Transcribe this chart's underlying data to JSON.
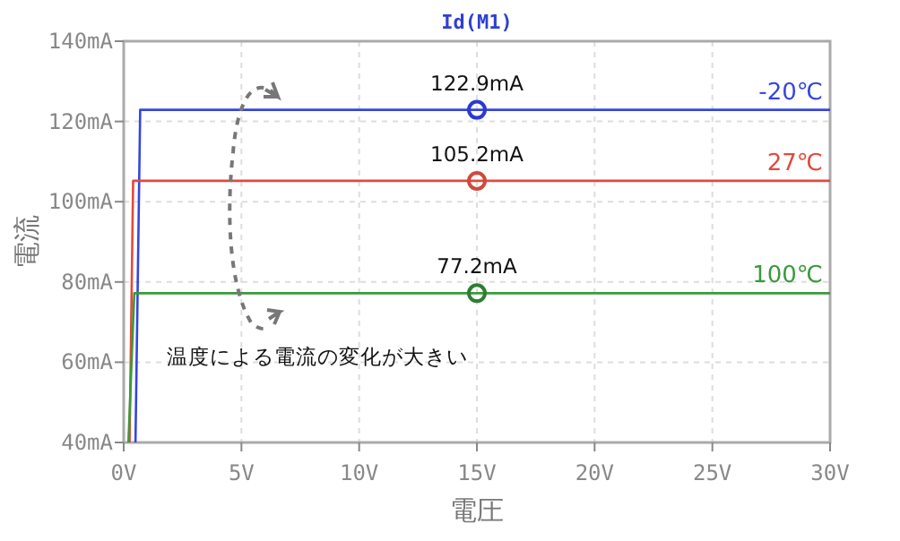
{
  "chart_data": {
    "type": "line",
    "title": "Id(M1)",
    "xlabel": "電圧",
    "ylabel": "電流",
    "xlim": [
      0,
      30
    ],
    "ylim": [
      40,
      140
    ],
    "xticks": [
      {
        "value": 0,
        "label": "0V"
      },
      {
        "value": 5,
        "label": "5V"
      },
      {
        "value": 10,
        "label": "10V"
      },
      {
        "value": 15,
        "label": "15V"
      },
      {
        "value": 20,
        "label": "20V"
      },
      {
        "value": 25,
        "label": "25V"
      },
      {
        "value": 30,
        "label": "30V"
      }
    ],
    "yticks": [
      {
        "value": 40,
        "label": "40mA"
      },
      {
        "value": 60,
        "label": "60mA"
      },
      {
        "value": 80,
        "label": "80mA"
      },
      {
        "value": 100,
        "label": "100mA"
      },
      {
        "value": 120,
        "label": "120mA"
      },
      {
        "value": 140,
        "label": "140mA"
      }
    ],
    "grid": true,
    "line_style": "solid",
    "annotations": [
      "温度による電流の変化が大きい"
    ],
    "series": [
      {
        "name": "-20℃",
        "color": "#3545e0",
        "x": [
          0.5,
          0.7,
          30
        ],
        "values": [
          40,
          122.9,
          122.9
        ]
      },
      {
        "name": "27℃",
        "color": "#e04a3c",
        "x": [
          0.25,
          0.4,
          30
        ],
        "values": [
          40,
          105.2,
          105.2
        ]
      },
      {
        "name": "100℃",
        "color": "#3a9a3a",
        "x": [
          0.2,
          0.45,
          30
        ],
        "values": [
          40,
          77.2,
          77.2
        ]
      },
      {
        "type": "scatter",
        "marker": "circle",
        "color": "#2a3ad0",
        "x": [
          15
        ],
        "values": [
          122.9
        ],
        "value_labels": [
          "122.9mA"
        ]
      },
      {
        "type": "scatter",
        "marker": "circle",
        "color": "#d04a3c",
        "x": [
          15
        ],
        "values": [
          105.2
        ],
        "value_labels": [
          "105.2mA"
        ]
      },
      {
        "type": "scatter",
        "marker": "circle",
        "color": "#2e7d32",
        "x": [
          15
        ],
        "values": [
          77.2
        ],
        "value_labels": [
          "77.2mA"
        ]
      }
    ]
  }
}
